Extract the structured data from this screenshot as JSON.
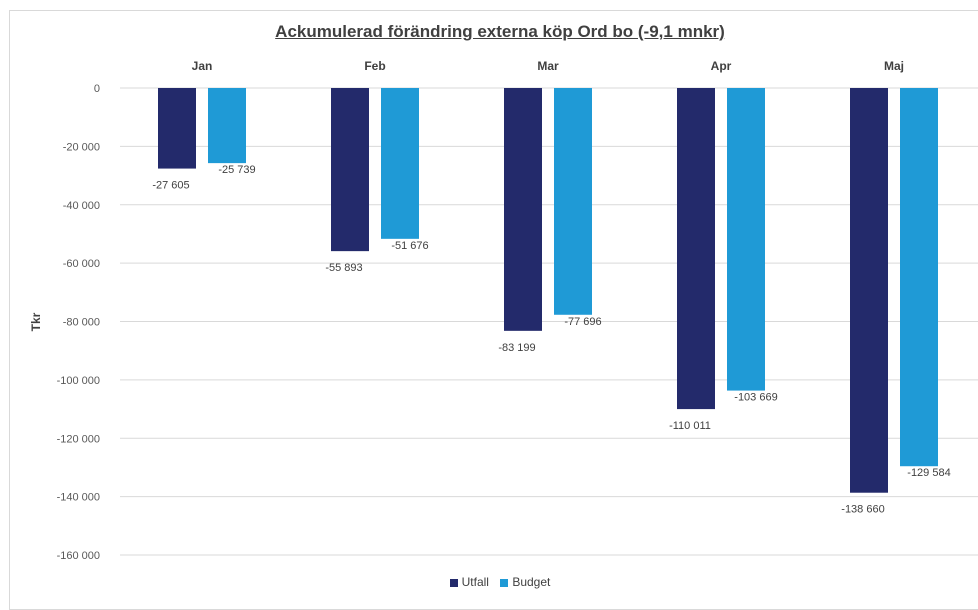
{
  "chart_data": {
    "type": "bar",
    "title": "Ackumulerad förändring externa köp Ord bo (-9,1 mnkr)",
    "ylabel": "Tkr",
    "xlabel": "",
    "categories": [
      "Jan",
      "Feb",
      "Mar",
      "Apr",
      "Maj"
    ],
    "series": [
      {
        "name": "Utfall",
        "color": "#232a6b",
        "values": [
          -27605,
          -55893,
          -83199,
          -110011,
          -138660
        ],
        "labels": [
          "-27 605",
          "-55 893",
          "-83 199",
          "-110 011",
          "-138 660"
        ]
      },
      {
        "name": "Budget",
        "color": "#1f9ad6",
        "values": [
          -25739,
          -51676,
          -77696,
          -103669,
          -129584
        ],
        "labels": [
          "-25 739",
          "-51 676",
          "-77 696",
          "-103 669",
          "-129 584"
        ]
      }
    ],
    "ylim": [
      -160000,
      0
    ],
    "yticks": [
      0,
      -20000,
      -40000,
      -60000,
      -80000,
      -100000,
      -120000,
      -140000,
      -160000
    ],
    "ytick_labels": [
      "0",
      "-20 000",
      "-40 000",
      "-60 000",
      "-80 000",
      "-100 000",
      "-120 000",
      "-140 000",
      "-160 000"
    ],
    "grid": true,
    "category_labels_position": "top",
    "legend_position": "bottom"
  }
}
